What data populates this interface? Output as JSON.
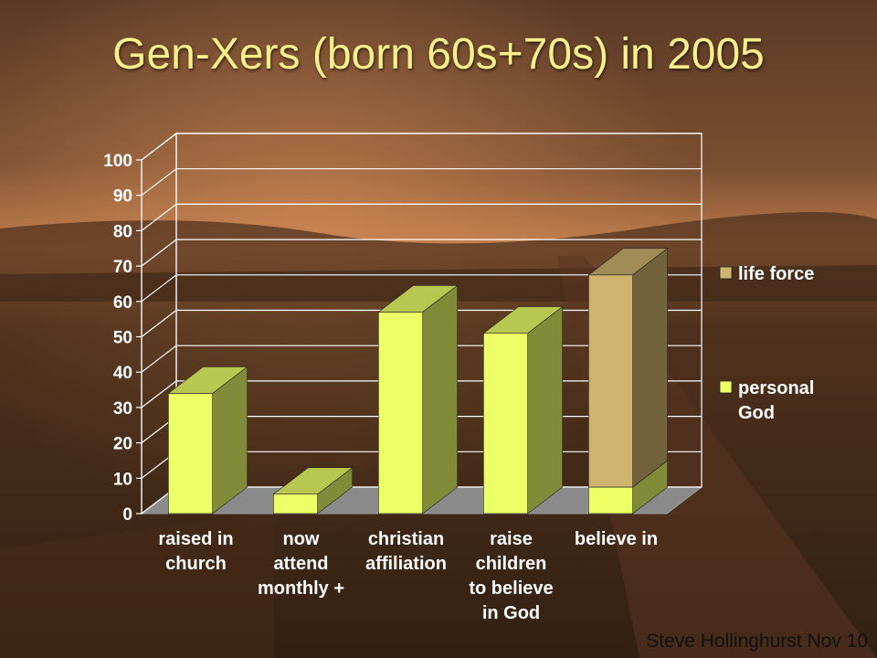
{
  "title": "Gen-Xers (born 60s+70s) in 2005",
  "footer": "Steve Hollinghurst Nov 10",
  "chart_data": {
    "type": "bar",
    "stacked": true,
    "three_d": true,
    "categories": [
      [
        "raised in",
        "church"
      ],
      [
        "now",
        "attend",
        "monthly +"
      ],
      [
        "christian",
        "affiliation"
      ],
      [
        "raise",
        "children",
        "to believe",
        "in God"
      ],
      [
        "believe in"
      ]
    ],
    "series": [
      {
        "name": "personal God",
        "legend_lines": [
          "personal",
          "God"
        ],
        "values": [
          34,
          5.5,
          57,
          51,
          7.5
        ],
        "color": "#ecff66"
      },
      {
        "name": "life force",
        "legend_lines": [
          "life force"
        ],
        "values": [
          0,
          0,
          0,
          0,
          60
        ],
        "color": "#cfb46f"
      }
    ],
    "ylim": [
      0,
      100
    ],
    "yticks": [
      0,
      10,
      20,
      30,
      40,
      50,
      60,
      70,
      80,
      90,
      100
    ],
    "grid": true,
    "legend_position": "right"
  }
}
